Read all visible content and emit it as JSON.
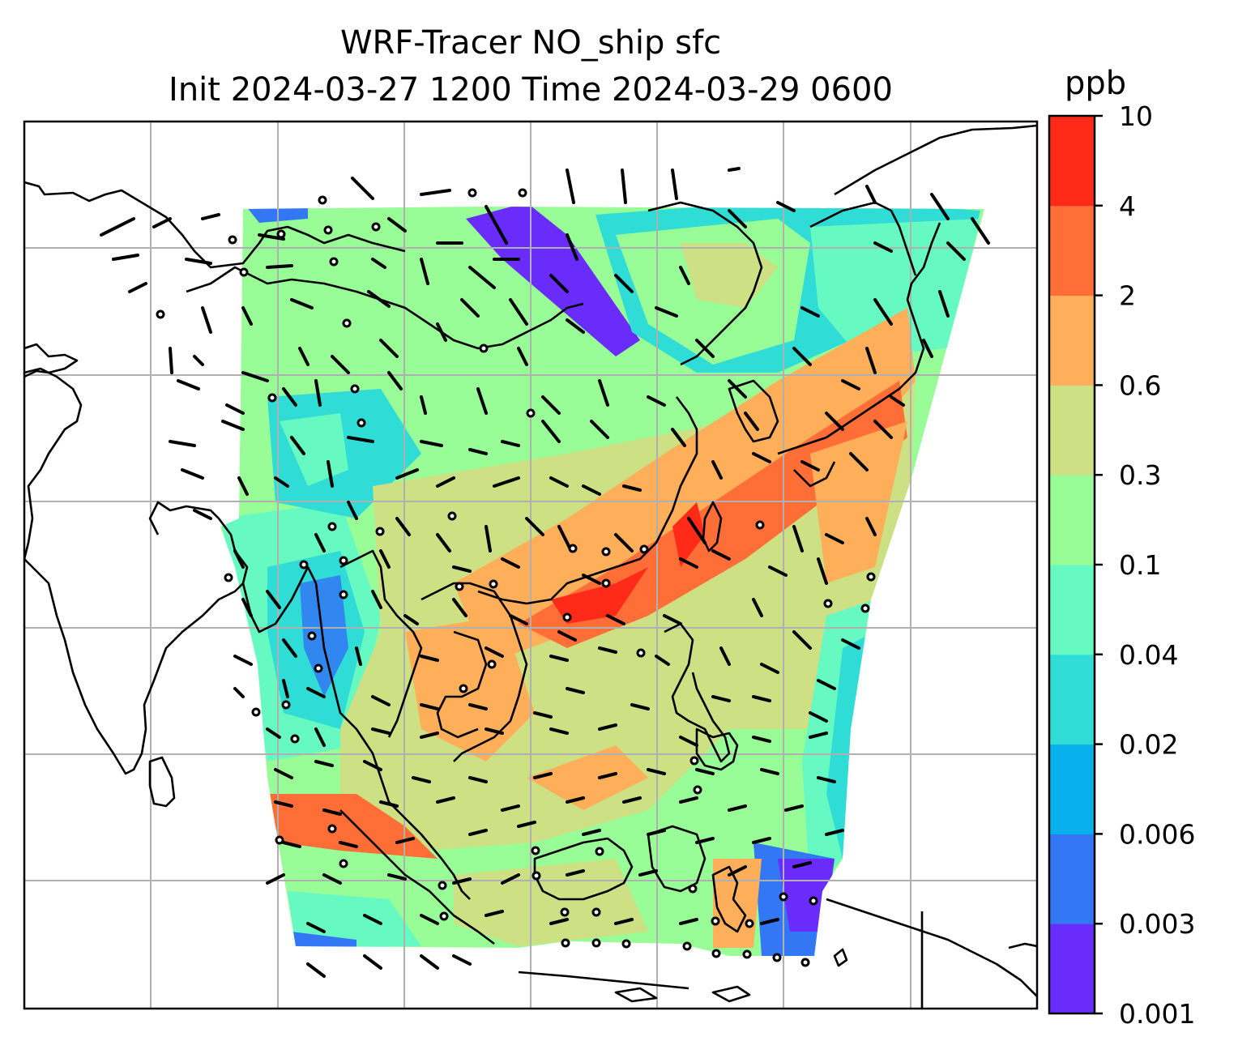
{
  "title": {
    "line1": "WRF-Tracer NO_ship sfc",
    "line2": "Init 2024-03-27 1200 Time 2024-03-29 0600"
  },
  "colorbar": {
    "units": "ppb",
    "levels": [
      "0.001",
      "0.003",
      "0.006",
      "0.02",
      "0.04",
      "0.1",
      "0.3",
      "0.6",
      "2",
      "4",
      "10"
    ],
    "colors": [
      "#6a2cfb",
      "#3377f5",
      "#08b1eb",
      "#2fdcd6",
      "#66f9c2",
      "#98fd96",
      "#cde084",
      "#ffaf5a",
      "#ff6e37",
      "#ff2a17"
    ]
  },
  "map": {
    "land_outline_color": "#000000",
    "gridline_color": "#b0b0b0",
    "wind_barb_color": "#000000",
    "calm_marker": "circle"
  }
}
